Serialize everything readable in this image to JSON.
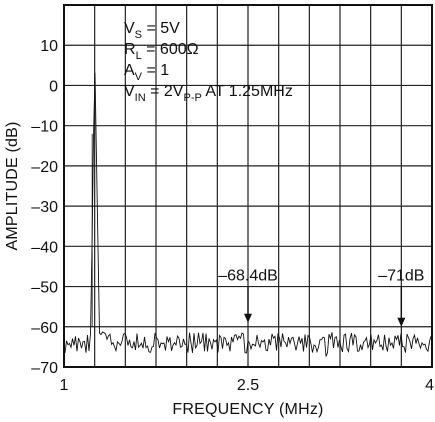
{
  "chart_data": {
    "type": "line",
    "title": "",
    "xlabel": "FREQUENCY (MHz)",
    "ylabel": "AMPLITUDE (dB)",
    "xlim": [
      1,
      4
    ],
    "ylim": [
      -70,
      20
    ],
    "x_ticks": [
      1,
      2.5,
      4
    ],
    "x_tick_labels": [
      "1",
      "2.5",
      "4"
    ],
    "x_grid_lines": 12,
    "y_ticks": [
      10,
      0,
      -10,
      -20,
      -30,
      -40,
      -50,
      -60,
      -70
    ],
    "y_tick_labels": [
      "10",
      "0",
      "–10",
      "–20",
      "–30",
      "–40",
      "–50",
      "–60",
      "–70"
    ],
    "grid": true,
    "conditions": [
      {
        "main": "V",
        "sub": "S",
        "rest": " = 5V"
      },
      {
        "main": "R",
        "sub": "L",
        "rest": " = 600Ω"
      },
      {
        "main": "A",
        "sub": "V",
        "rest": " = 1"
      },
      {
        "main": "V",
        "sub": "IN",
        "rest": " = 2V",
        "sub2": "P-P",
        "rest2": " AT 1.25MHz"
      }
    ],
    "fundamental": {
      "x": 1.25,
      "y": 8
    },
    "noise_floor": {
      "level": -64,
      "spread": 2.5
    },
    "annotations": [
      {
        "text": "–68.4dB",
        "x": 2.5,
        "arrow_tip_y": -59
      },
      {
        "text": "–71dB",
        "x": 3.75,
        "arrow_tip_y": -60
      }
    ]
  }
}
